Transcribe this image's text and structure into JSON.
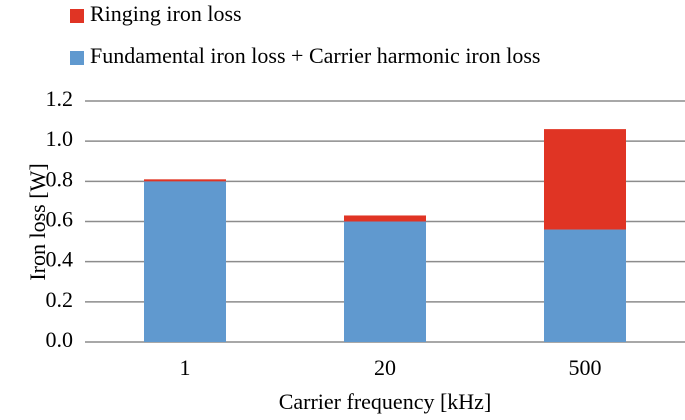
{
  "chart_data": {
    "type": "stacked_bar",
    "x_label": "Carrier frequency [kHz]",
    "y_label": "Iron loss [W]",
    "categories": [
      "1",
      "20",
      "500"
    ],
    "series": [
      {
        "name": "Fundamental iron loss + Carrier harmonic iron loss",
        "color": "#6099cf",
        "values": [
          0.8,
          0.6,
          0.56
        ]
      },
      {
        "name": "Ringing iron loss",
        "color": "#e03424",
        "values": [
          0.01,
          0.03,
          0.5
        ]
      }
    ],
    "ylim": [
      0,
      1.2
    ],
    "yticks": [
      {
        "value": 0,
        "label": "0.0"
      },
      0.2,
      0.4,
      0.6,
      0.8,
      {
        "value": 1,
        "label": "1.0"
      },
      1.2
    ],
    "grid": true
  }
}
